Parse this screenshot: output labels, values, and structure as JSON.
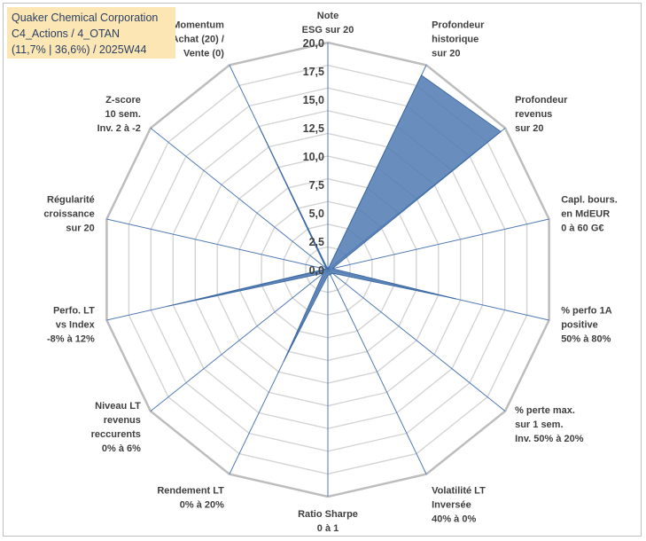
{
  "title_box": {
    "line1": "Quaker Chemical Corporation",
    "line2": "C4_Actions / 4_OTAN",
    "line3": "(11,7% | 36,6%) / 2025W44",
    "bg_color": "#fce7b4"
  },
  "chart_data": {
    "type": "radar",
    "rmin": 0,
    "rmax": 20,
    "ticks": [
      "0,0",
      "2,5",
      "5,0",
      "7,5",
      "10,0",
      "12,5",
      "15,0",
      "17,5",
      "20,0"
    ],
    "grid_levels": 10,
    "fill_color": "#4f7ab3",
    "axes": [
      {
        "label": [
          "Note",
          "ESG sur 20"
        ],
        "value": 0.0
      },
      {
        "label": [
          "Profondeur",
          "historique",
          "sur 20"
        ],
        "value": 19.0
      },
      {
        "label": [
          "Profondeur",
          "revenus",
          "sur 20"
        ],
        "value": 19.5
      },
      {
        "label": [
          "Capl. bours.",
          "en MdEUR",
          "0 à 60 G€"
        ],
        "value": 0.4
      },
      {
        "label": [
          "% perfo 1A",
          "positive",
          "50% à 80%"
        ],
        "value": 11.6
      },
      {
        "label": [
          "% perte max.",
          "sur 1 sem.",
          "Inv. 50% à 20%"
        ],
        "value": 0.5
      },
      {
        "label": [
          "Volatilité LT",
          "Inversée",
          "40% à 0%"
        ],
        "value": 0.5
      },
      {
        "label": [
          "Ratio Sharpe",
          "0 à 1"
        ],
        "value": 0.5
      },
      {
        "label": [
          "Rendement LT",
          "0% à 20%"
        ],
        "value": 9.0
      },
      {
        "label": [
          "Niveau LT",
          "revenus",
          "reccurents",
          "0% à 6%"
        ],
        "value": 0.5
      },
      {
        "label": [
          "Perfo. LT",
          "vs Index",
          "-8% à 12%"
        ],
        "value": 14.5
      },
      {
        "label": [
          "Régularité",
          "croissance",
          "sur 20"
        ],
        "value": 0.2
      },
      {
        "label": [
          "Z-score",
          "10 sem.",
          "Inv. 2 à -2"
        ],
        "value": 0.2
      },
      {
        "label": [
          "Momentum",
          "Achat (20) /",
          "Vente (0)"
        ],
        "value": 14.0
      }
    ]
  }
}
